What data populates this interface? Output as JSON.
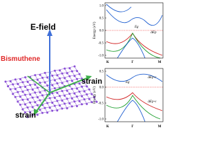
{
  "figure": {
    "labels": {
      "field": "E-field",
      "material": "Bismuthene",
      "strain_right": "strain",
      "strain_bottom": "strain"
    },
    "panels": [
      {
        "y_label": "Energy (eV)",
        "y_ticks": [
          "1.0",
          "0.5",
          "0.0",
          "-0.5",
          "-1.0"
        ],
        "x_ticks": [
          "K",
          "Γ",
          "M"
        ],
        "annotations": [
          "Eg",
          "ΔEp"
        ]
      },
      {
        "y_label": "Energy (eV)",
        "y_ticks": [
          "0.5",
          "0.0",
          "-0.5",
          "-1.0"
        ],
        "x_ticks": [
          "K",
          "Γ",
          "M"
        ],
        "annotations": [
          "Eg",
          "ΔEp-c",
          "ΔEp-v"
        ]
      }
    ]
  }
}
